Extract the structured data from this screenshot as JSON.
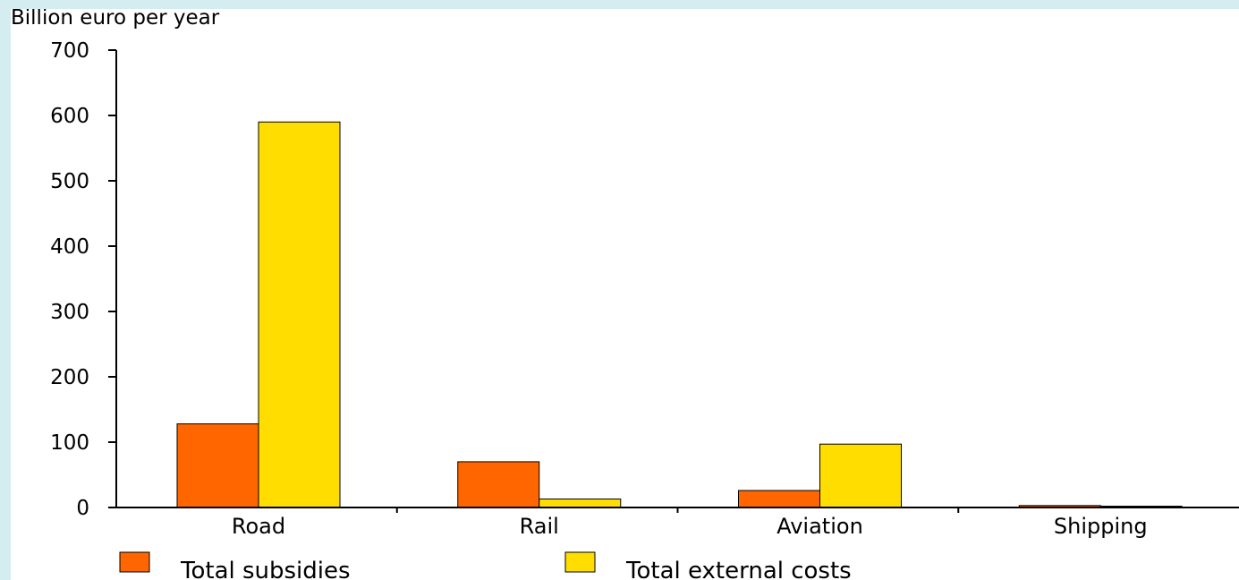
{
  "chart_data": {
    "type": "bar",
    "title": "",
    "ylabel": "Billion euro per year",
    "xlabel": "",
    "categories": [
      "Road",
      "Rail",
      "Aviation",
      "Shipping"
    ],
    "series": [
      {
        "name": "Total subsidies",
        "values": [
          128,
          70,
          26,
          3
        ],
        "color": "#ff6600"
      },
      {
        "name": "Total external costs",
        "values": [
          590,
          13,
          97,
          2
        ],
        "color": "#ffdd00"
      }
    ],
    "ylim": [
      0,
      700
    ],
    "yticks": [
      0,
      100,
      200,
      300,
      400,
      500,
      600,
      700
    ],
    "grid": false,
    "legend_position": "bottom"
  }
}
